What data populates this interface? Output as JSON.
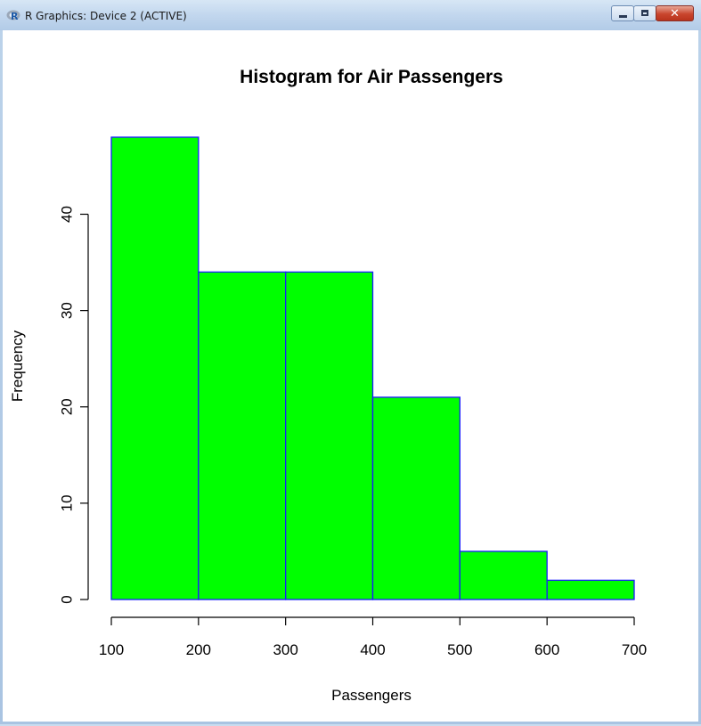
{
  "window": {
    "title": "R Graphics: Device 2 (ACTIVE)",
    "icon": "r-logo-icon",
    "controls": [
      "minimize-icon",
      "maximize-icon",
      "close-icon"
    ],
    "close_glyph": "✕"
  },
  "chart_data": {
    "type": "bar",
    "title": "Histogram for Air Passengers",
    "xlabel": "Passengers",
    "ylabel": "Frequency",
    "bins": [
      {
        "start": 100,
        "end": 200,
        "count": 48
      },
      {
        "start": 200,
        "end": 300,
        "count": 34
      },
      {
        "start": 300,
        "end": 400,
        "count": 34
      },
      {
        "start": 400,
        "end": 500,
        "count": 21
      },
      {
        "start": 500,
        "end": 600,
        "count": 5
      },
      {
        "start": 600,
        "end": 700,
        "count": 2
      }
    ],
    "xticks": [
      100,
      200,
      300,
      400,
      500,
      600,
      700
    ],
    "yticks": [
      0,
      10,
      20,
      30,
      40
    ],
    "xlim": [
      100,
      700
    ],
    "ylim": [
      0,
      48
    ],
    "grid": false,
    "fill_color": "#00ff00",
    "border_color": "#1a1aff"
  }
}
